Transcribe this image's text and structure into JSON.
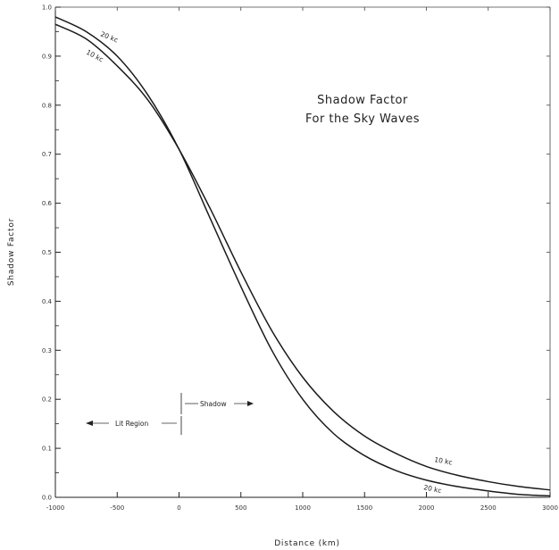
{
  "chart_data": {
    "type": "line",
    "title_lines": [
      "Shadow Factor",
      "For the Sky Waves"
    ],
    "xlabel": "Distance (km)",
    "ylabel": "Shadow Factor",
    "xlim": [
      -1000,
      3000
    ],
    "ylim": [
      0.0,
      1.0
    ],
    "x_ticks": [
      -1000,
      -500,
      0,
      500,
      1000,
      1500,
      2000,
      2500,
      3000
    ],
    "x_tick_labels": [
      "-1000",
      "-500",
      "0",
      "500",
      "1000",
      "1500",
      "2000",
      "2500",
      "3000"
    ],
    "y_ticks": [
      0.0,
      0.1,
      0.2,
      0.3,
      0.4,
      0.5,
      0.6,
      0.7,
      0.8,
      0.9,
      1.0
    ],
    "y_tick_labels": [
      "0.0",
      "0.1",
      "0.2",
      "0.3",
      "0.4",
      "0.5",
      "0.6",
      "0.7",
      "0.8",
      "0.9",
      "1.0"
    ],
    "grid": false,
    "series": [
      {
        "name": "20 kc",
        "x": [
          -1000,
          -750,
          -500,
          -250,
          0,
          250,
          500,
          750,
          1000,
          1250,
          1500,
          1750,
          2000,
          2250,
          2500,
          2750,
          3000
        ],
        "y": [
          0.98,
          0.95,
          0.9,
          0.82,
          0.71,
          0.57,
          0.43,
          0.3,
          0.2,
          0.13,
          0.085,
          0.055,
          0.035,
          0.022,
          0.013,
          0.006,
          0.003
        ]
      },
      {
        "name": "10 kc",
        "x": [
          -1000,
          -750,
          -500,
          -250,
          0,
          250,
          500,
          750,
          1000,
          1250,
          1500,
          1750,
          2000,
          2250,
          2500,
          2750,
          3000
        ],
        "y": [
          0.965,
          0.935,
          0.88,
          0.81,
          0.71,
          0.59,
          0.46,
          0.34,
          0.245,
          0.175,
          0.125,
          0.09,
          0.063,
          0.045,
          0.032,
          0.022,
          0.015
        ]
      }
    ],
    "curve_labels": {
      "s20_top": "20 kc",
      "s10_top": "10 kc",
      "s10_bottom": "10 kc",
      "s20_bottom": "20 kc"
    },
    "annotations": {
      "shadow": "Shadow",
      "lit_region": "Lit Region"
    }
  }
}
